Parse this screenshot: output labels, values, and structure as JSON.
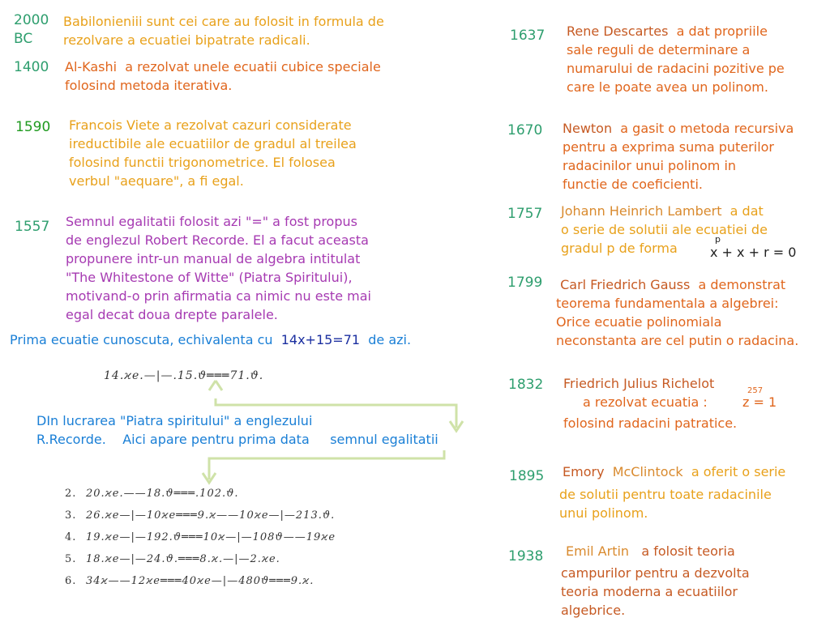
{
  "colors": {
    "year": "#2e9e6e",
    "orange": "#e8a11b",
    "dark_orange": "#e0661d",
    "purple": "#a63ab2",
    "blue": "#1a7fd6",
    "navy": "#1b2fa0",
    "arrow": "#cfe2a8"
  },
  "left": {
    "babylon": {
      "year_a": "2000",
      "year_b": "BC",
      "line1": "Babilonieniii sunt cei care au folosit in formula de",
      "line2": "rezolvare a ecuatiei bipatrate radicali."
    },
    "alkashi": {
      "year": "1400",
      "name": "Al-Kashi",
      "line1": "a rezolvat unele ecuatii cubice speciale",
      "line2": "folosind metoda iterativa."
    },
    "viete": {
      "year": "1590",
      "line1": "Francois Viete a rezolvat cazuri considerate",
      "line2": "ireductibile ale ecuatiilor de gradul al treilea",
      "line3": "folosind functii trigonometrice. El folosea",
      "line4": "verbul \"aequare\", a fi egal."
    },
    "recorde": {
      "year": "1557",
      "line1": "Semnul egalitatii folosit azi \"=\" a fost propus",
      "line2": "de englezul Robert Recorde. El a facut aceasta",
      "line3": "propunere intr-un manual de algebra intitulat",
      "line4": "\"The Whitestone of Witte\" (Piatra Spiritului),",
      "line5": "motivand-o prin afirmatia ca nimic nu este mai",
      "line6": "egal decat doua drepte paralele."
    },
    "first_eq": {
      "pre": "Prima ecuatie cunoscuta, echivalenta cu",
      "eq": "14x+15=71",
      "post": "de azi."
    },
    "handwritten_top": "14.ϰe.—|—.15.ϑ═══71.ϑ.",
    "piatra": {
      "line1": "DIn lucrarea \"Piatra spiritului\" a englezului",
      "line2a": "R.Recorde.",
      "line2b": "Aici apare pentru prima data",
      "line2c": "semnul egalitatii"
    },
    "handwritten_rows": [
      {
        "num": "2.",
        "text": "20.ϰe.——18.ϑ═══.102.ϑ."
      },
      {
        "num": "3.",
        "text": "26.ϰe—|—10ϰe═══9.ϰ——10ϰe—|—213.ϑ."
      },
      {
        "num": "4.",
        "text": "19.ϰe—|—192.ϑ═══10ϰ—|—108ϑ——19ϰe"
      },
      {
        "num": "5.",
        "text": "18.ϰe—|—24.ϑ.═══8.ϰ.—|—2.ϰe."
      },
      {
        "num": "6.",
        "text": "34ϰ——12ϰe═══40ϰe—|—480ϑ═══9.ϰ."
      }
    ]
  },
  "right": {
    "descartes": {
      "year": "1637",
      "name": "Rene Descartes",
      "line1": "a dat propriile",
      "line2": "sale reguli de determinare a",
      "line3": "numarului de radacini pozitive pe",
      "line4": "care le poate avea un polinom."
    },
    "newton": {
      "year": "1670",
      "name": "Newton",
      "line1": "a gasit o metoda recursiva",
      "line2": "pentru a exprima suma puterilor",
      "line3": "radacinilor unui polinom in",
      "line4": "functie de coeficienti."
    },
    "lambert": {
      "year": "1757",
      "name": "Johann Heinrich Lambert",
      "line1": "a dat",
      "line2": "o serie de solutii ale ecuatiei de",
      "line3": "gradul p de forma",
      "eq": "x + x + r = 0",
      "exp": "p"
    },
    "gauss": {
      "year": "1799",
      "name": "Carl Friedrich Gauss",
      "line1": "a demonstrat",
      "line2": "teorema fundamentala a algebrei:",
      "line3": "Orice ecuatie polinomiala",
      "line4": "neconstanta are cel putin o radacina."
    },
    "richelot": {
      "year": "1832",
      "name": "Friedrich Julius Richelot",
      "line1": "a rezolvat ecuatia :",
      "eq": "z = 1",
      "exp": "257",
      "line2": "folosind radacini patratice."
    },
    "mcclintock": {
      "year": "1895",
      "name1": "Emory",
      "name2": "McClintock",
      "line1": "a oferit o serie",
      "line2": "de solutii pentru toate radacinile",
      "line3": "unui polinom."
    },
    "artin": {
      "year": "1938",
      "name": "Emil Artin",
      "line1": "a folosit teoria",
      "line2": "campurilor pentru a dezvolta",
      "line3": "teoria moderna a ecuatiilor",
      "line4": "algebrice."
    }
  }
}
